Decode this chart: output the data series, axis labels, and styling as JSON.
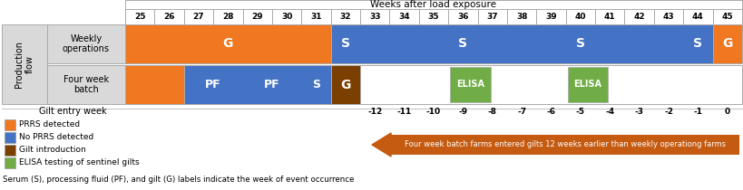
{
  "col_labels": [
    "25",
    "26",
    "27",
    "28",
    "29",
    "30",
    "31",
    "32",
    "33",
    "34",
    "35",
    "36",
    "37",
    "38",
    "39",
    "40",
    "41",
    "42",
    "43",
    "44",
    "45"
  ],
  "gilt_entry_weeks": [
    "-12",
    "-11",
    "-10",
    "-9",
    "-8",
    "-7",
    "-6",
    "-5",
    "-4",
    "-3",
    "-2",
    "-1",
    "0"
  ],
  "row_labels": [
    "Weekly\noperations",
    "Four week\nbatch"
  ],
  "prod_flow_label": "Production\nflow",
  "header_title": "Weeks after load exposure",
  "gilt_entry_label": "Gilt entry week",
  "arrow_text": "Four week batch farms entered gilts 12 weeks earlier than weekly operationg farms",
  "bottom_text": "Serum (S), processing fluid (PF), and gilt (G) labels indicate the week of event occurrence",
  "legend_items": [
    {
      "color": "#F07820",
      "label": "PRRS detected"
    },
    {
      "color": "#4472C4",
      "label": "No PRRS detected"
    },
    {
      "color": "#7B3F00",
      "label": "Gilt introduction"
    },
    {
      "color": "#70AD47",
      "label": "ELISA testing of sentinel gilts"
    }
  ],
  "orange": "#F07820",
  "blue": "#4472C4",
  "brown": "#7B3F00",
  "green": "#70AD47",
  "gray": "#D9D9D9",
  "arrow_color": "#C55A11",
  "fig_width": 8.2,
  "fig_height": 2.1,
  "dpi": 100
}
